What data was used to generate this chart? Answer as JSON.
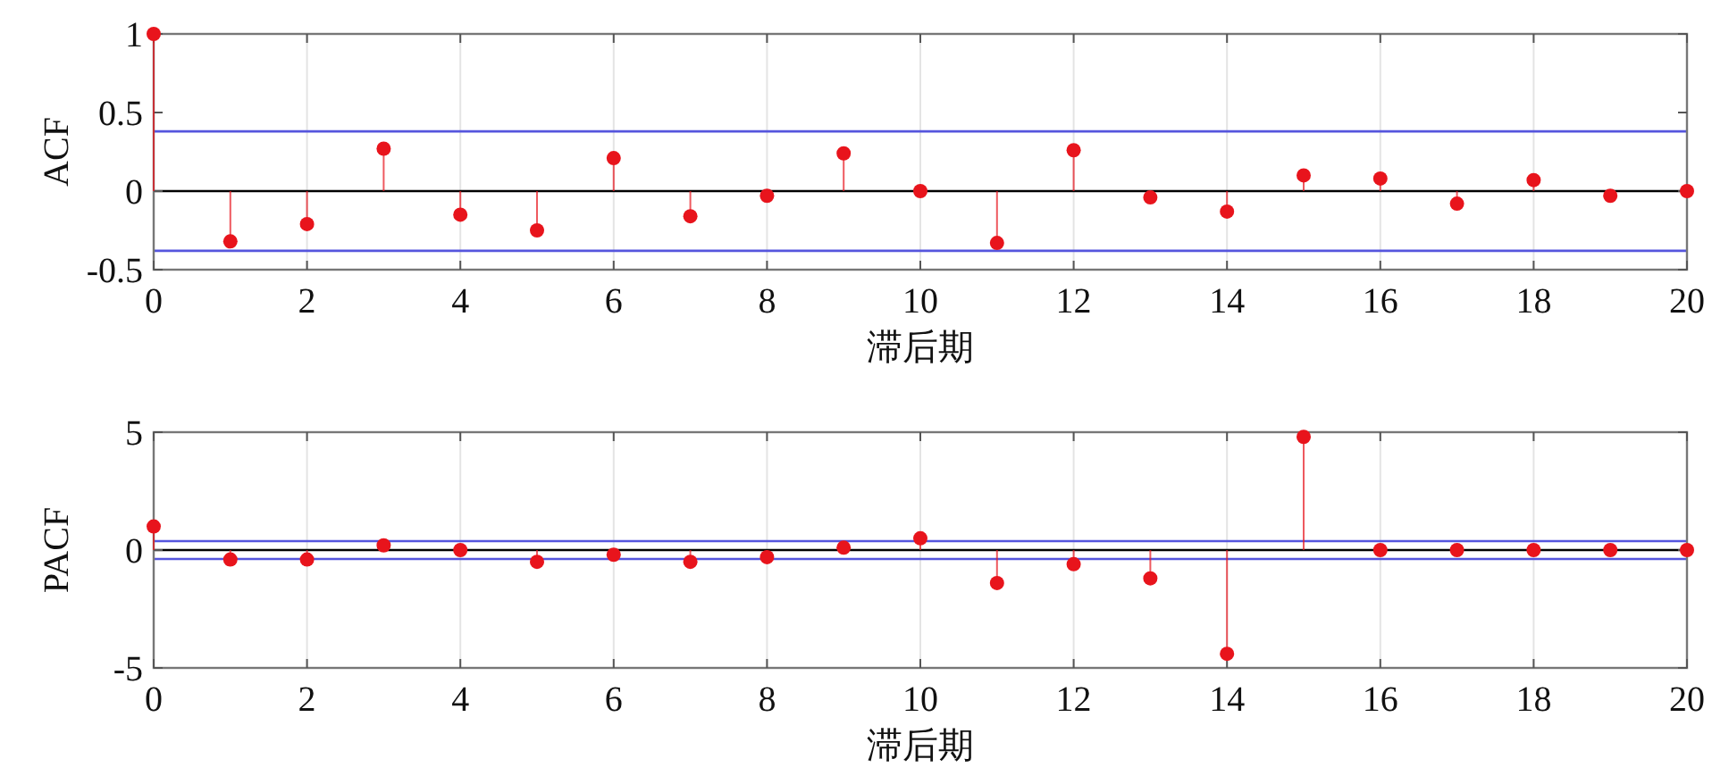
{
  "chart_data": [
    {
      "type": "lollipop",
      "ylabel": "ACF",
      "xlabel": "滞后期",
      "x": [
        0,
        1,
        2,
        3,
        4,
        5,
        6,
        7,
        8,
        9,
        10,
        11,
        12,
        13,
        14,
        15,
        16,
        17,
        18,
        19,
        20
      ],
      "series": [
        {
          "color": "#e8141c",
          "values": [
            1,
            -0.32,
            -0.21,
            0.27,
            -0.15,
            -0.25,
            0.21,
            -0.16,
            -0.03,
            0.24,
            0,
            -0.33,
            0.26,
            -0.04,
            -0.13,
            0.1,
            0.08,
            -0.08,
            0.07,
            -0.03,
            0
          ]
        }
      ],
      "xlim": [
        0,
        20
      ],
      "xticks": [
        0,
        2,
        4,
        6,
        8,
        10,
        12,
        14,
        16,
        18,
        20
      ],
      "ylim": [
        -0.5,
        1
      ],
      "yticks": [
        -0.5,
        0,
        0.5,
        1
      ],
      "grid": "x",
      "marker": "circle",
      "ref_lines": [
        {
          "axis": "y",
          "value": 0,
          "color": "#000000"
        },
        {
          "axis": "y",
          "value": 0.38,
          "color": "#5555dd"
        },
        {
          "axis": "y",
          "value": -0.38,
          "color": "#5555dd"
        }
      ]
    },
    {
      "type": "lollipop",
      "ylabel": "PACF",
      "xlabel": "滞后期",
      "x": [
        0,
        1,
        2,
        3,
        4,
        5,
        6,
        7,
        8,
        9,
        10,
        11,
        12,
        13,
        14,
        15,
        16,
        17,
        18,
        19,
        20
      ],
      "series": [
        {
          "color": "#e8141c",
          "values": [
            1,
            -0.4,
            -0.4,
            0.2,
            0,
            -0.5,
            -0.2,
            -0.5,
            -0.3,
            0.1,
            0.5,
            -1.4,
            -0.6,
            -1.2,
            -4.4,
            4.8,
            0,
            0,
            0,
            0,
            0
          ]
        }
      ],
      "xlim": [
        0,
        20
      ],
      "xticks": [
        0,
        2,
        4,
        6,
        8,
        10,
        12,
        14,
        16,
        18,
        20
      ],
      "ylim": [
        -5,
        5
      ],
      "yticks": [
        -5,
        0,
        5
      ],
      "grid": "x",
      "marker": "circle",
      "ref_lines": [
        {
          "axis": "y",
          "value": 0,
          "color": "#000000"
        },
        {
          "axis": "y",
          "value": 0.38,
          "color": "#5555dd"
        },
        {
          "axis": "y",
          "value": -0.38,
          "color": "#5555dd"
        }
      ]
    }
  ]
}
